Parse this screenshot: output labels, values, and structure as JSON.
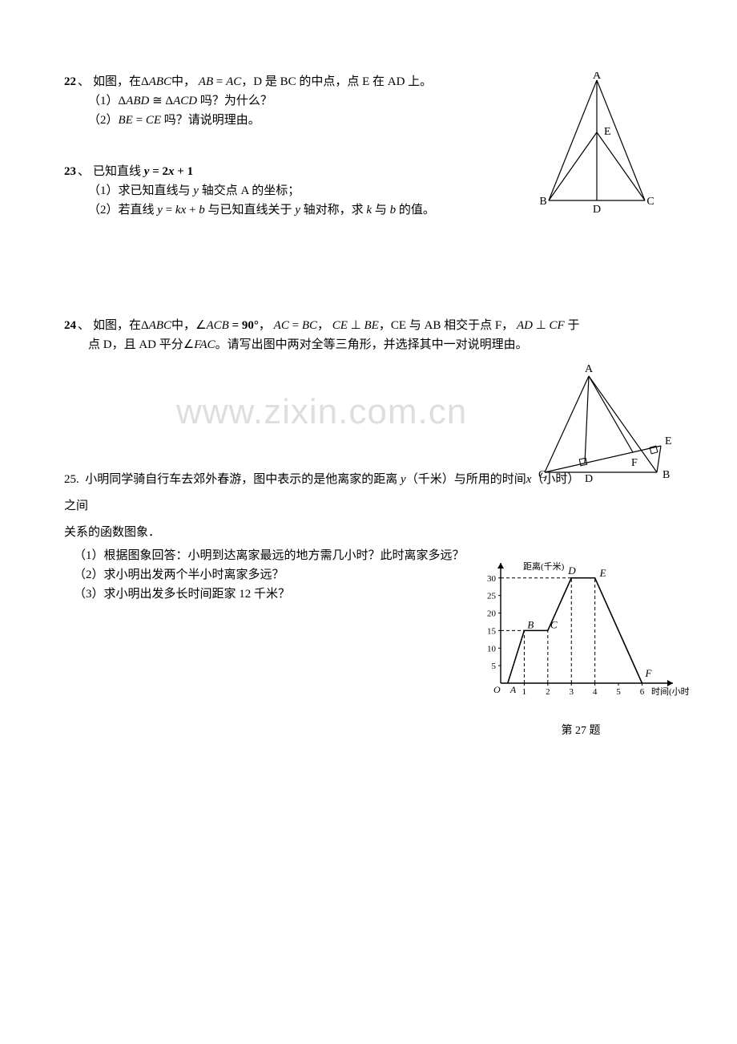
{
  "watermark": "www.zixin.com.cn",
  "p22": {
    "num": "22",
    "sep": "、",
    "line1_a": "如图，在",
    "line1_b": "Δ",
    "line1_c": "ABC",
    "line1_d": "中，",
    "line1_e": "AB",
    "line1_f": " = ",
    "line1_g": "AC",
    "line1_h": "，D 是 BC 的中点，点 E 在 AD 上。",
    "sub1_a": "（1）",
    "sub1_b": "Δ",
    "sub1_c": "ABD",
    "sub1_d": " ≅ ",
    "sub1_e": "Δ",
    "sub1_f": "ACD",
    "sub1_g": " 吗？为什么？",
    "sub2_a": "（2）",
    "sub2_b": "BE",
    "sub2_c": " = ",
    "sub2_d": "CE",
    "sub2_e": " 吗？请说明理由。",
    "fig": {
      "A": "A",
      "B": "B",
      "C": "C",
      "D": "D",
      "E": "E"
    }
  },
  "p23": {
    "num": "23",
    "sep": "、",
    "line1_a": "已知直线 ",
    "line1_b": "y",
    "line1_c": " = ",
    "line1_d": "2",
    "line1_e": "x",
    "line1_f": " + ",
    "line1_g": "1",
    "sub1_a": "（1）求已知直线与 ",
    "sub1_b": "y",
    "sub1_c": " 轴交点 A 的坐标；",
    "sub2_a": "（2）若直线 ",
    "sub2_b": "y",
    "sub2_c": " = ",
    "sub2_d": "kx",
    "sub2_e": " + ",
    "sub2_f": "b",
    "sub2_g": " 与已知直线关于 ",
    "sub2_h": "y",
    "sub2_i": " 轴对称，求 ",
    "sub2_j": "k",
    "sub2_k": " 与 ",
    "sub2_l": "b",
    "sub2_m": " 的值。"
  },
  "p24": {
    "num": "24",
    "sep": "、",
    "line1_a": "如图，在",
    "line1_b": "Δ",
    "line1_c": "ABC",
    "line1_d": "中，",
    "line1_e": "∠",
    "line1_f": "ACB",
    "line1_g": " = ",
    "line1_h": "90°",
    "line1_i": "，",
    "line1_j": "AC",
    "line1_k": " = ",
    "line1_l": "BC",
    "line1_m": "，",
    "line1_n": "CE",
    "line1_o": " ⊥ ",
    "line1_p": "BE",
    "line1_q": "，CE 与 AB 相交于点 F，",
    "line1_r": "AD",
    "line1_s": " ⊥ ",
    "line1_t": "CF",
    "line1_u": " 于",
    "line2_a": "点 D，且 AD 平分",
    "line2_b": "∠",
    "line2_c": "FAC",
    "line2_d": "。请写出图中两对全等三角形，并选择其中一对说明理由。",
    "fig": {
      "A": "A",
      "B": "B",
      "C": "C",
      "D": "D",
      "E": "E",
      "F": "F"
    }
  },
  "p25": {
    "num": "25.",
    "line1_a": "小明同学骑自行车去郊外春游，图中表示的是他离家的距离 ",
    "line1_b": "y",
    "line1_c": "（千米）与所用的时间",
    "line1_d": "x",
    "line1_e": "（小时）之间",
    "line2": "关系的函数图象．",
    "sub1": "（1）根据图象回答：小明到达离家最远的地方需几小时？此时离家多远？",
    "sub2": "（2）求小明出发两个半小时离家多远？",
    "sub3": "（3）求小明出发多长时间距家 12 千米？",
    "chart": {
      "ylabel": "距离(千米)",
      "xlabel": "时间(小时)",
      "yticks": [
        "5",
        "10",
        "15",
        "20",
        "25",
        "30"
      ],
      "xticks": [
        "1",
        "2",
        "3",
        "4",
        "5",
        "6"
      ],
      "pts": {
        "O": "O",
        "A": "A",
        "B": "B",
        "C": "C",
        "D": "D",
        "E": "E",
        "F": "F"
      },
      "caption": "第  27  题",
      "data": {
        "A": {
          "x": 0.3,
          "y": 0
        },
        "B": {
          "x": 1,
          "y": 15
        },
        "C": {
          "x": 2,
          "y": 15
        },
        "D": {
          "x": 3,
          "y": 30
        },
        "E": {
          "x": 4,
          "y": 30
        },
        "F": {
          "x": 6,
          "y": 0
        }
      },
      "ylim": [
        0,
        32
      ],
      "xlim": [
        0,
        6.8
      ],
      "line_color": "#000",
      "axis_color": "#000",
      "dash_color": "#000",
      "grid": "off"
    }
  }
}
